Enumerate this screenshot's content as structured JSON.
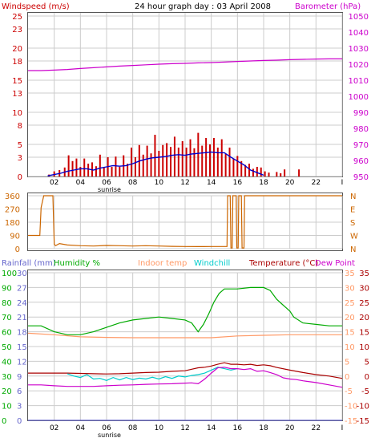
{
  "header": {
    "windspeed_label": "Windspeed (m/s)",
    "title": "24 hour graph day : 03 April 2008",
    "barometer_label": "Barometer (hPa)"
  },
  "colors": {
    "windspeed": "#cc0000",
    "windavg": "#0000cc",
    "barometer": "#cc00cc",
    "direction": "#cc6600",
    "rainfall": "#6666cc",
    "humidity": "#00aa00",
    "indoor": "#ff9966",
    "windchill": "#00cccc",
    "temperature": "#aa0000",
    "dewpoint": "#cc00cc",
    "grid": "#cccccc"
  },
  "x_axis": {
    "ticks": [
      "02",
      "04",
      "06",
      "08",
      "10",
      "12",
      "14",
      "16",
      "18",
      "20",
      "22",
      "I"
    ],
    "sunrise_label": "sunrise"
  },
  "chart_data": [
    {
      "type": "bar",
      "title": "24 hour graph day : 03 April 2008",
      "x_unit": "hour",
      "xlim": [
        0,
        24
      ],
      "left_axis": {
        "label": "Windspeed (m/s)",
        "ylim": [
          0,
          25
        ],
        "ticks": [
          0,
          3,
          5,
          8,
          10,
          13,
          15,
          18,
          20,
          23,
          25
        ]
      },
      "right_axis": {
        "label": "Barometer (hPa)",
        "ylim": [
          950,
          1050
        ],
        "ticks": [
          950,
          960,
          970,
          980,
          990,
          1000,
          1010,
          1020,
          1030,
          1040,
          1050
        ]
      },
      "series": [
        {
          "name": "Windspeed (m/s)",
          "kind": "bars",
          "axis": "left",
          "x": [
            1.6,
            2.0,
            2.4,
            2.8,
            3.1,
            3.4,
            3.7,
            4.0,
            4.3,
            4.6,
            4.9,
            5.2,
            5.5,
            5.8,
            6.1,
            6.4,
            6.7,
            7.0,
            7.3,
            7.6,
            7.9,
            8.2,
            8.5,
            8.8,
            9.1,
            9.4,
            9.7,
            10.0,
            10.3,
            10.6,
            10.9,
            11.2,
            11.5,
            11.8,
            12.1,
            12.4,
            12.7,
            13.0,
            13.3,
            13.6,
            13.9,
            14.2,
            14.5,
            14.8,
            15.1,
            15.4,
            15.7,
            16.0,
            16.3,
            16.6,
            16.9,
            17.2,
            17.5,
            17.8,
            18.1,
            18.4,
            19.0,
            19.3,
            19.6,
            20.7
          ],
          "values": [
            0.3,
            0.8,
            1.0,
            1.4,
            3.3,
            2.4,
            2.8,
            1.5,
            2.8,
            2.0,
            2.2,
            1.6,
            3.4,
            1.5,
            3.0,
            1.5,
            3.1,
            1.5,
            3.3,
            2.0,
            4.5,
            3.0,
            4.9,
            3.4,
            4.8,
            3.6,
            6.5,
            4.0,
            4.9,
            5.2,
            4.6,
            6.2,
            4.5,
            5.5,
            4.5,
            5.8,
            4.4,
            6.8,
            4.8,
            6.0,
            5.0,
            6.0,
            4.5,
            5.8,
            3.5,
            4.5,
            2.8,
            3.2,
            2.4,
            1.8,
            2.0,
            1.2,
            1.5,
            1.4,
            0.8,
            0.6,
            0.7,
            0.5,
            1.1,
            1.1
          ]
        },
        {
          "name": "Average windspeed",
          "kind": "line",
          "axis": "left",
          "x": [
            1.5,
            2.0,
            2.5,
            3.0,
            3.5,
            4.0,
            4.5,
            5.0,
            5.5,
            6.0,
            6.5,
            7.0,
            7.5,
            8.0,
            8.5,
            9.0,
            9.5,
            10.0,
            10.5,
            11.0,
            11.5,
            12.0,
            12.5,
            13.0,
            13.5,
            14.0,
            14.5,
            15.0,
            15.5,
            16.0,
            16.5,
            17.0,
            17.5,
            18.0
          ],
          "values": [
            0.1,
            0.3,
            0.5,
            0.8,
            1.0,
            1.2,
            1.2,
            1.0,
            1.3,
            1.5,
            1.7,
            1.6,
            1.7,
            2.0,
            2.4,
            2.7,
            2.9,
            3.0,
            3.1,
            3.3,
            3.4,
            3.3,
            3.5,
            3.6,
            3.7,
            3.8,
            3.7,
            3.7,
            3.0,
            2.4,
            1.8,
            1.0,
            0.6,
            0.2
          ]
        },
        {
          "name": "Barometer (hPa)",
          "kind": "line",
          "axis": "right",
          "x": [
            0,
            1,
            2,
            3,
            4,
            5,
            6,
            7,
            8,
            9,
            10,
            11,
            12,
            13,
            14,
            15,
            16,
            17,
            18,
            19,
            20,
            21,
            22,
            23,
            24
          ],
          "values": [
            1016.0,
            1016.0,
            1016.3,
            1016.7,
            1017.3,
            1017.8,
            1018.3,
            1018.8,
            1019.2,
            1019.6,
            1020.0,
            1020.3,
            1020.5,
            1020.8,
            1021.0,
            1021.3,
            1021.7,
            1022.0,
            1022.3,
            1022.5,
            1022.8,
            1023.0,
            1023.2,
            1023.3,
            1023.3
          ]
        }
      ]
    },
    {
      "type": "line",
      "xlim": [
        0,
        24
      ],
      "left_axis": {
        "ylim": [
          0,
          360
        ],
        "ticks": [
          0,
          90,
          180,
          270,
          360
        ]
      },
      "right_axis": {
        "ticks": [
          "N",
          "W",
          "S",
          "E",
          "N"
        ]
      },
      "series": [
        {
          "name": "Wind direction",
          "kind": "step",
          "axis": "left",
          "x": [
            0,
            0.9,
            1.0,
            1.2,
            1.9,
            2.0,
            2.1,
            2.4,
            3.0,
            4.0,
            5.0,
            6.0,
            7.0,
            8.0,
            9.0,
            10.0,
            11.0,
            12.0,
            13.0,
            14.0,
            15.0,
            15.2,
            15.25,
            15.45,
            15.5,
            15.6,
            15.65,
            15.9,
            15.95,
            16.05,
            16.1,
            16.3,
            16.35,
            16.5,
            16.55,
            18.8,
            18.85,
            24
          ],
          "values": [
            90,
            90,
            280,
            360,
            360,
            30,
            20,
            35,
            25,
            20,
            18,
            22,
            20,
            18,
            20,
            18,
            16,
            15,
            14,
            15,
            15,
            15,
            360,
            360,
            5,
            5,
            360,
            360,
            5,
            5,
            360,
            360,
            5,
            5,
            360,
            360,
            360,
            360
          ]
        }
      ]
    },
    {
      "type": "line",
      "xlim": [
        0,
        24
      ],
      "left_axes": [
        {
          "label": "Rainfall (mm)",
          "ylim": [
            0,
            30
          ],
          "ticks": [
            0,
            3,
            6,
            9,
            12,
            15,
            18,
            21,
            24,
            27,
            30
          ]
        },
        {
          "label": "Humidity %",
          "ylim": [
            0,
            100
          ],
          "ticks": [
            0,
            10,
            20,
            30,
            40,
            50,
            60,
            70,
            80,
            90,
            100
          ]
        }
      ],
      "top_labels": [
        "Indoor temp",
        "Windchill",
        "Temperature (°C)",
        "Dew Point"
      ],
      "right_axes": [
        {
          "ylim": [
            -15,
            35
          ],
          "ticks": [
            -15,
            -10,
            -5,
            0,
            5,
            10,
            15,
            20,
            25,
            30,
            35
          ]
        },
        {
          "ylim": [
            -15,
            35
          ],
          "ticks": [
            -15,
            -10,
            -5,
            0,
            5,
            10,
            15,
            20,
            25,
            30,
            35
          ]
        }
      ],
      "series": [
        {
          "name": "Rainfall (mm)",
          "axis": "rainfall",
          "x": [
            0,
            24
          ],
          "values": [
            0,
            0
          ]
        },
        {
          "name": "Humidity %",
          "axis": "humidity",
          "x": [
            0,
            1,
            2,
            3,
            4,
            5,
            6,
            7,
            8,
            9,
            10,
            11,
            12,
            12.5,
            13.0,
            13.4,
            13.8,
            14.2,
            14.6,
            15.0,
            15.5,
            16,
            17,
            18,
            18.5,
            19,
            19.5,
            20,
            20.3,
            21,
            22,
            23,
            24
          ],
          "values": [
            64,
            64,
            60,
            58,
            58,
            60,
            63,
            66,
            68,
            69,
            70,
            69,
            68,
            66,
            60,
            65,
            72,
            80,
            86,
            89,
            89,
            89,
            90,
            90,
            88,
            82,
            78,
            74,
            70,
            66,
            65,
            64,
            64
          ]
        },
        {
          "name": "Indoor temp",
          "axis": "temp",
          "x": [
            0,
            2,
            4,
            6,
            8,
            10,
            12,
            14,
            16,
            18,
            20,
            22,
            24
          ],
          "values": [
            14.5,
            14.0,
            13.3,
            13.1,
            13.0,
            13.0,
            13.0,
            13.0,
            13.6,
            13.8,
            14.0,
            14.0,
            14.0
          ]
        },
        {
          "name": "Temperature (°C)",
          "axis": "temp",
          "x": [
            0,
            1,
            2,
            3,
            4,
            5,
            6,
            7,
            8,
            9,
            10,
            11,
            12,
            12.5,
            13.0,
            13.5,
            14.0,
            14.5,
            15.0,
            15.5,
            16.0,
            16.5,
            17.0,
            17.5,
            18.0,
            18.5,
            19.0,
            20.0,
            21.0,
            22.0,
            23.0,
            24.0
          ],
          "values": [
            1.0,
            1.0,
            1.0,
            1.0,
            0.9,
            0.8,
            0.7,
            0.8,
            1.0,
            1.2,
            1.3,
            1.6,
            1.8,
            2.3,
            2.8,
            3.0,
            3.4,
            4.0,
            4.5,
            4.0,
            4.0,
            3.8,
            4.0,
            3.6,
            3.8,
            3.5,
            2.9,
            2.0,
            1.2,
            0.5,
            0.0,
            -0.8
          ]
        },
        {
          "name": "Windchill",
          "axis": "temp",
          "x": [
            3.0,
            3.5,
            4.0,
            4.5,
            5.0,
            5.5,
            6.0,
            6.5,
            7.0,
            7.5,
            8.0,
            8.5,
            9.0,
            9.5,
            10.0,
            10.5,
            11.0,
            11.5,
            12.0,
            12.5,
            13.0,
            13.5,
            14.0,
            14.5,
            15.0,
            15.5,
            16.0
          ],
          "values": [
            0.8,
            0.0,
            -0.5,
            0.5,
            -1.0,
            -0.8,
            -1.5,
            -0.5,
            -1.3,
            -0.5,
            -1.2,
            -0.7,
            -1.0,
            -0.4,
            -1.0,
            -0.2,
            -0.8,
            0.0,
            -0.3,
            0.2,
            0.5,
            1.0,
            2.0,
            3.0,
            2.5,
            2.0,
            2.5
          ]
        },
        {
          "name": "Dew Point",
          "axis": "temp",
          "x": [
            0,
            1,
            2,
            3,
            4,
            5,
            6,
            7,
            8,
            9,
            10,
            11,
            12,
            12.5,
            13.0,
            13.5,
            14.0,
            14.5,
            15.0,
            15.5,
            16.0,
            16.5,
            17.0,
            17.5,
            18.0,
            18.5,
            19.0,
            19.5,
            20.0,
            20.5,
            21.0,
            22.0,
            23.0,
            24.0
          ],
          "values": [
            -3.0,
            -3.0,
            -3.3,
            -3.5,
            -3.5,
            -3.5,
            -3.3,
            -3.1,
            -3.0,
            -2.8,
            -2.7,
            -2.6,
            -2.4,
            -2.3,
            -2.6,
            -1.0,
            1.0,
            2.8,
            3.0,
            2.5,
            2.5,
            2.2,
            2.5,
            1.6,
            1.8,
            1.2,
            0.5,
            -0.6,
            -1.0,
            -1.2,
            -1.6,
            -2.2,
            -3.0,
            -3.8
          ]
        }
      ]
    }
  ]
}
